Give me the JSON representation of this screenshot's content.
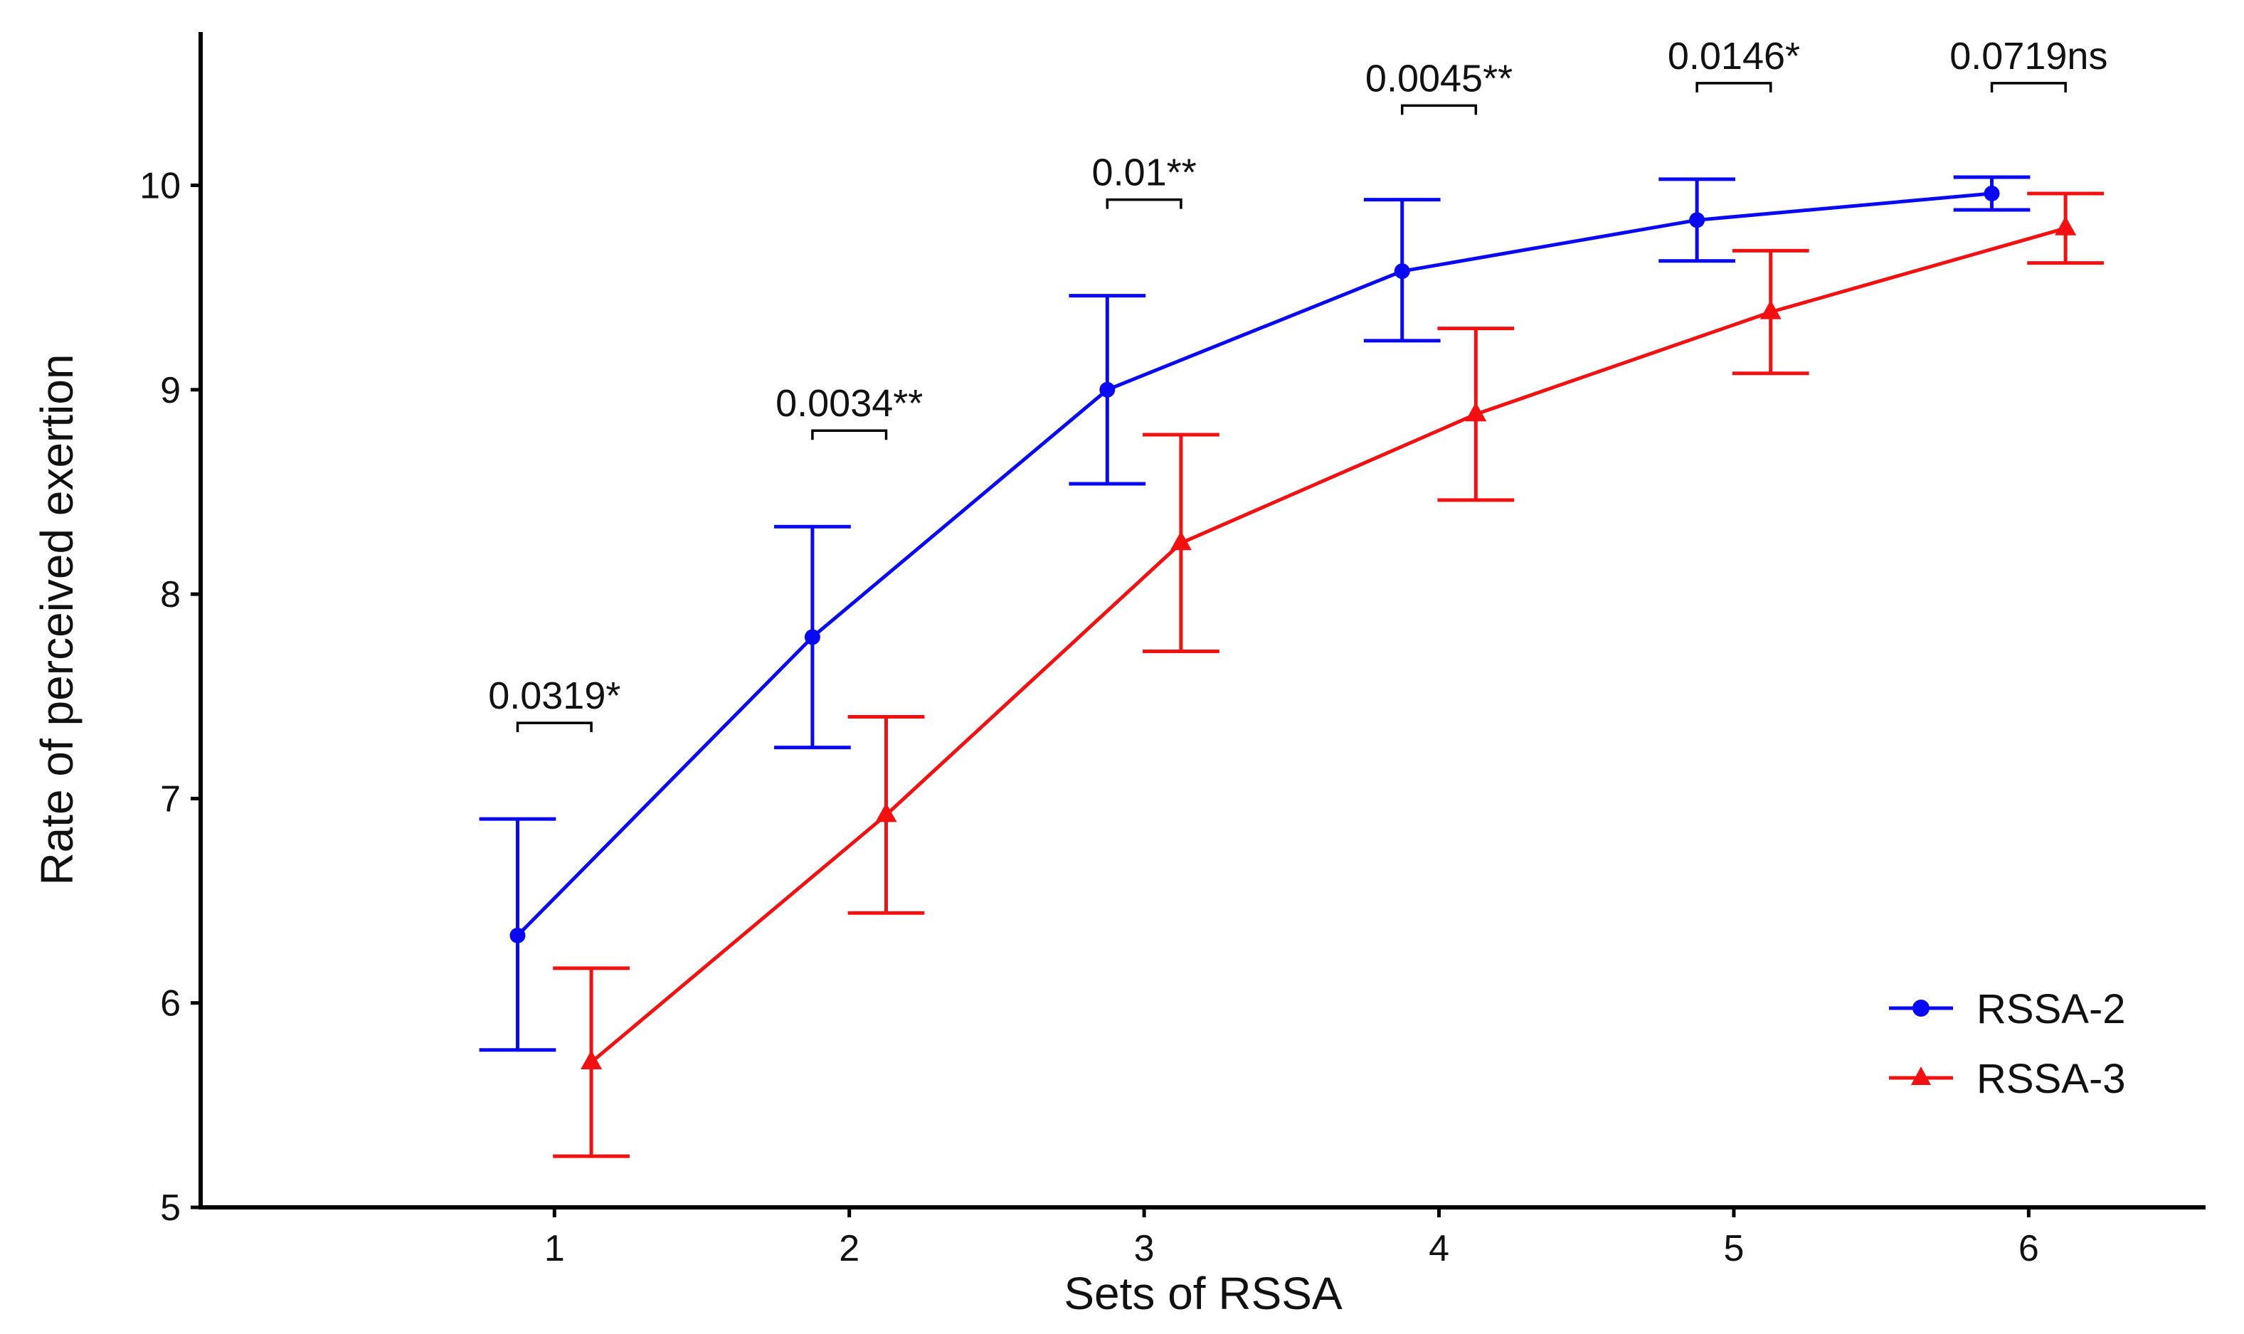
{
  "chart_data": {
    "type": "line",
    "title": "",
    "xlabel": "Sets of RSSA",
    "ylabel": "Rate of perceived exertion",
    "x": [
      1,
      2,
      3,
      4,
      5,
      6
    ],
    "xlim": [
      -0.2,
      6.6
    ],
    "ylim": [
      5,
      10.75
    ],
    "yticks": [
      5,
      6,
      7,
      8,
      9,
      10
    ],
    "grid": false,
    "legend": "bottom-right",
    "series": [
      {
        "name": "RSSA-2",
        "color": "#0a0af2",
        "marker": "circle",
        "values": [
          6.33,
          7.79,
          9.0,
          9.58,
          9.83,
          9.96
        ],
        "error_low": [
          5.77,
          7.25,
          8.54,
          9.24,
          9.63,
          9.88
        ],
        "error_high": [
          6.9,
          8.33,
          9.46,
          9.93,
          10.03,
          10.04
        ]
      },
      {
        "name": "RSSA-3",
        "color": "#f21010",
        "marker": "triangle",
        "values": [
          5.71,
          6.92,
          8.25,
          8.88,
          9.38,
          9.79
        ],
        "error_low": [
          5.25,
          6.44,
          7.72,
          8.46,
          9.08,
          9.62
        ],
        "error_high": [
          6.17,
          7.4,
          8.78,
          9.3,
          9.68,
          9.96
        ]
      }
    ],
    "annotations": [
      {
        "x": 1,
        "text": "0.0319*",
        "bracket_y": 7.37
      },
      {
        "x": 2,
        "text": "0.0034**",
        "bracket_y": 8.8
      },
      {
        "x": 3,
        "text": "0.01**",
        "bracket_y": 9.93
      },
      {
        "x": 4,
        "text": "0.0045**",
        "bracket_y": 10.39
      },
      {
        "x": 5,
        "text": "0.0146*",
        "bracket_y": 10.5
      },
      {
        "x": 6,
        "text": "0.0719ns",
        "bracket_y": 10.5
      }
    ]
  }
}
